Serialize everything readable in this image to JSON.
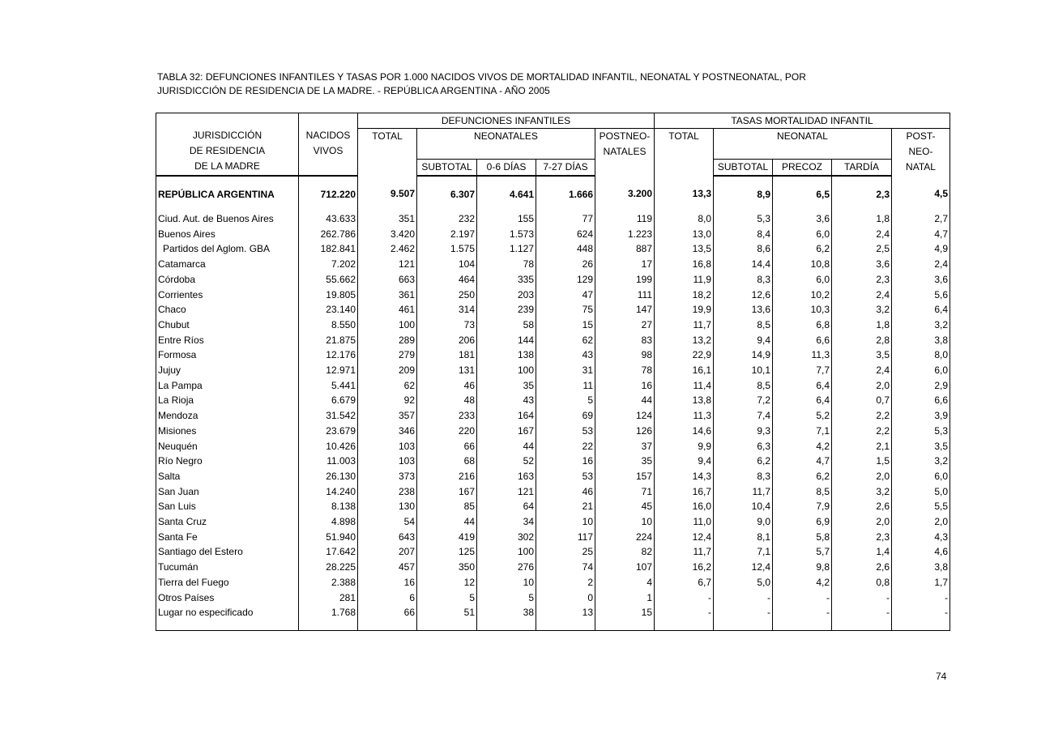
{
  "title": {
    "line1": "TABLA 32: DEFUNCIONES INFANTILES Y TASAS POR 1.000 NACIDOS VIVOS DE MORTALIDAD INFANTIL, NEONATAL Y POSTNEONATAL, POR",
    "line2": "JURISDICCIÓN DE RESIDENCIA DE LA MADRE. - REPÚBLICA ARGENTINA - AÑO 2005"
  },
  "header": {
    "jurisdiccion": [
      "JURISDICCIÓN",
      "DE RESIDENCIA",
      "DE LA MADRE"
    ],
    "nacidos": [
      "NACIDOS",
      "VIVOS"
    ],
    "defunciones": "DEFUNCIONES  INFANTILES",
    "def_total": "TOTAL",
    "neonatales": "NEONATALES",
    "postneonatales": [
      "POSTNEO-",
      "NATALES"
    ],
    "def_sub": [
      "SUBTOTAL",
      "0-6 DÍAS",
      "7-27 DÍAS"
    ],
    "tasas": "TASAS MORTALIDAD INFANTIL",
    "tasa_total": "TOTAL",
    "neonatal": "NEONATAL",
    "postneonatal": [
      "POST-",
      "NEO-",
      "NATAL"
    ],
    "tasa_sub": [
      "SUBTOTAL",
      "PRECOZ",
      "TARDÍA"
    ]
  },
  "total_row": [
    "REPÚBLICA ARGENTINA",
    "712.220",
    "9.507",
    "6.307",
    "4.641",
    "1.666",
    "3.200",
    "13,3",
    "8,9",
    "6,5",
    "2,3",
    "4,5"
  ],
  "rows": [
    [
      "Ciud. Aut. de  Buenos Aires",
      "43.633",
      "351",
      "232",
      "155",
      "77",
      "119",
      "8,0",
      "5,3",
      "3,6",
      "1,8",
      "2,7"
    ],
    [
      "Buenos Aires",
      "262.786",
      "3.420",
      "2.197",
      "1.573",
      "624",
      "1.223",
      "13,0",
      "8,4",
      "6,0",
      "2,4",
      "4,7"
    ],
    [
      "Partidos del Aglom. GBA",
      "182.841",
      "2.462",
      "1.575",
      "1.127",
      "448",
      "887",
      "13,5",
      "8,6",
      "6,2",
      "2,5",
      "4,9"
    ],
    [
      "Catamarca",
      "7.202",
      "121",
      "104",
      "78",
      "26",
      "17",
      "16,8",
      "14,4",
      "10,8",
      "3,6",
      "2,4"
    ],
    [
      "Córdoba",
      "55.662",
      "663",
      "464",
      "335",
      "129",
      "199",
      "11,9",
      "8,3",
      "6,0",
      "2,3",
      "3,6"
    ],
    [
      "Corrientes",
      "19.805",
      "361",
      "250",
      "203",
      "47",
      "111",
      "18,2",
      "12,6",
      "10,2",
      "2,4",
      "5,6"
    ],
    [
      "Chaco",
      "23.140",
      "461",
      "314",
      "239",
      "75",
      "147",
      "19,9",
      "13,6",
      "10,3",
      "3,2",
      "6,4"
    ],
    [
      "Chubut",
      "8.550",
      "100",
      "73",
      "58",
      "15",
      "27",
      "11,7",
      "8,5",
      "6,8",
      "1,8",
      "3,2"
    ],
    [
      "Entre Ríos",
      "21.875",
      "289",
      "206",
      "144",
      "62",
      "83",
      "13,2",
      "9,4",
      "6,6",
      "2,8",
      "3,8"
    ],
    [
      "Formosa",
      "12.176",
      "279",
      "181",
      "138",
      "43",
      "98",
      "22,9",
      "14,9",
      "11,3",
      "3,5",
      "8,0"
    ],
    [
      "Jujuy",
      "12.971",
      "209",
      "131",
      "100",
      "31",
      "78",
      "16,1",
      "10,1",
      "7,7",
      "2,4",
      "6,0"
    ],
    [
      "La Pampa",
      "5.441",
      "62",
      "46",
      "35",
      "11",
      "16",
      "11,4",
      "8,5",
      "6,4",
      "2,0",
      "2,9"
    ],
    [
      "La Rioja",
      "6.679",
      "92",
      "48",
      "43",
      "5",
      "44",
      "13,8",
      "7,2",
      "6,4",
      "0,7",
      "6,6"
    ],
    [
      "Mendoza",
      "31.542",
      "357",
      "233",
      "164",
      "69",
      "124",
      "11,3",
      "7,4",
      "5,2",
      "2,2",
      "3,9"
    ],
    [
      "Misiones",
      "23.679",
      "346",
      "220",
      "167",
      "53",
      "126",
      "14,6",
      "9,3",
      "7,1",
      "2,2",
      "5,3"
    ],
    [
      "Neuquén",
      "10.426",
      "103",
      "66",
      "44",
      "22",
      "37",
      "9,9",
      "6,3",
      "4,2",
      "2,1",
      "3,5"
    ],
    [
      "Río Negro",
      "11.003",
      "103",
      "68",
      "52",
      "16",
      "35",
      "9,4",
      "6,2",
      "4,7",
      "1,5",
      "3,2"
    ],
    [
      "Salta",
      "26.130",
      "373",
      "216",
      "163",
      "53",
      "157",
      "14,3",
      "8,3",
      "6,2",
      "2,0",
      "6,0"
    ],
    [
      "San Juan",
      "14.240",
      "238",
      "167",
      "121",
      "46",
      "71",
      "16,7",
      "11,7",
      "8,5",
      "3,2",
      "5,0"
    ],
    [
      "San Luis",
      "8.138",
      "130",
      "85",
      "64",
      "21",
      "45",
      "16,0",
      "10,4",
      "7,9",
      "2,6",
      "5,5"
    ],
    [
      "Santa Cruz",
      "4.898",
      "54",
      "44",
      "34",
      "10",
      "10",
      "11,0",
      "9,0",
      "6,9",
      "2,0",
      "2,0"
    ],
    [
      "Santa Fe",
      "51.940",
      "643",
      "419",
      "302",
      "117",
      "224",
      "12,4",
      "8,1",
      "5,8",
      "2,3",
      "4,3"
    ],
    [
      "Santiago del Estero",
      "17.642",
      "207",
      "125",
      "100",
      "25",
      "82",
      "11,7",
      "7,1",
      "5,7",
      "1,4",
      "4,6"
    ],
    [
      "Tucumán",
      "28.225",
      "457",
      "350",
      "276",
      "74",
      "107",
      "16,2",
      "12,4",
      "9,8",
      "2,6",
      "3,8"
    ],
    [
      "Tierra del Fuego",
      "2.388",
      "16",
      "12",
      "10",
      "2",
      "4",
      "6,7",
      "5,0",
      "4,2",
      "0,8",
      "1,7"
    ],
    [
      "Otros Países",
      "281",
      "6",
      "5",
      "5",
      "0",
      "1",
      "-",
      "-",
      "-",
      "-",
      "-"
    ],
    [
      "Lugar no especificado",
      "1.768",
      "66",
      "51",
      "38",
      "13",
      "15",
      "-",
      "-",
      "-",
      "-",
      "-"
    ]
  ],
  "indented_rows": [
    "Partidos del Aglom. GBA"
  ],
  "page_number": "74"
}
